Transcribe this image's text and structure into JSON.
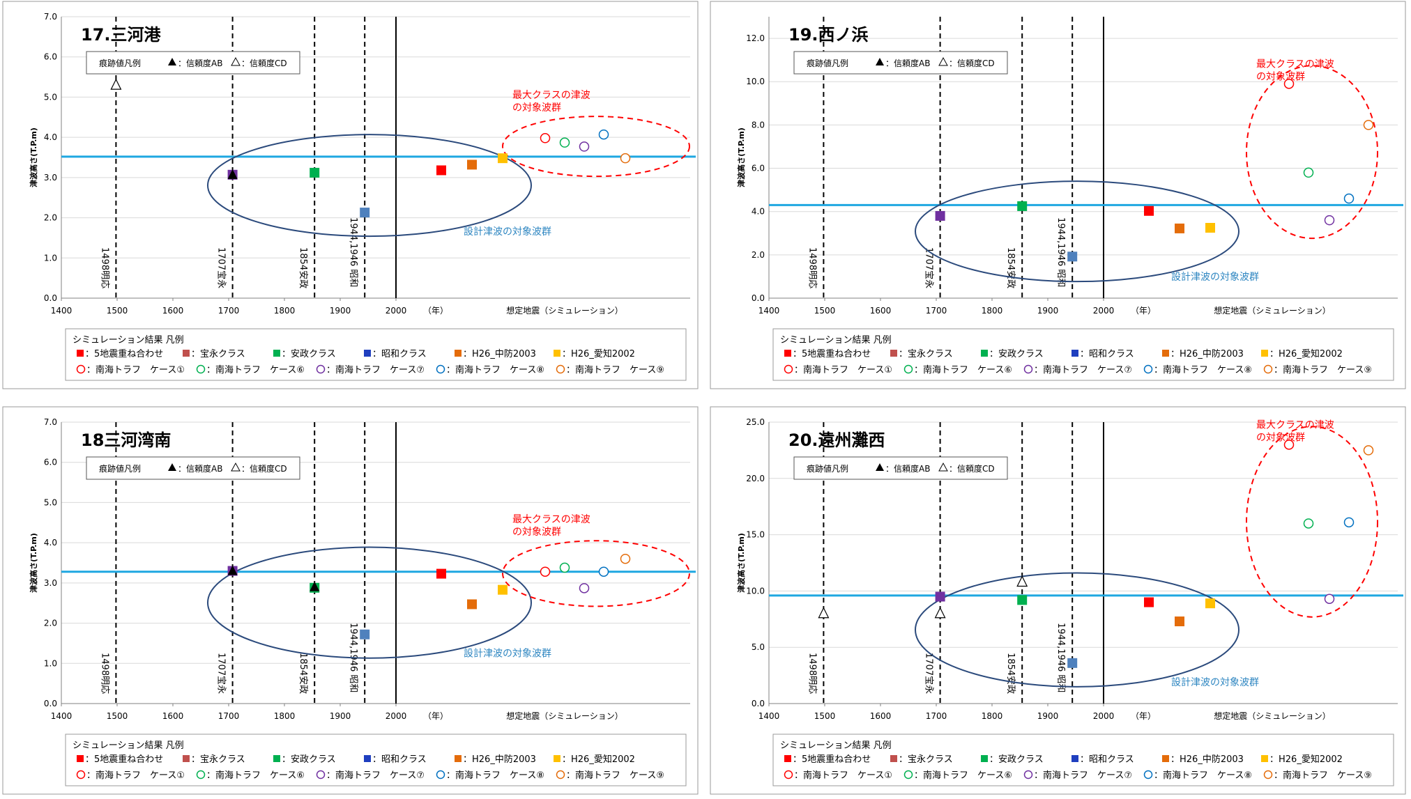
{
  "common": {
    "ylabel": "津波高さ(T.P.m)",
    "x_ticks": [
      "1400",
      "1500",
      "1600",
      "1700",
      "1800",
      "1900",
      "2000"
    ],
    "x_unit_label": "（年）",
    "simulation_label": "想定地震（シミュレーション）",
    "trace_legend": {
      "title": "痕跡値凡例",
      "ab_label": "：信頼度AB",
      "cd_label": "：信頼度CD"
    },
    "max_class_label": [
      "最大クラスの津波",
      "の対象波群"
    ],
    "design_label": "設計津波の対象波群",
    "event_labels": [
      "1498明応",
      "1707宝永",
      "1854安政",
      "1944,1946 昭和"
    ],
    "sim_legend": {
      "title": "シミュレーション結果 凡例",
      "row1": [
        {
          "label": "：5地震重ね合わせ",
          "color": "#ff0000"
        },
        {
          "label": "：宝永クラス",
          "color": "#c0504d"
        },
        {
          "label": "：安政クラス",
          "color": "#00b050"
        },
        {
          "label": "：昭和クラス",
          "color": "#1f3fbf"
        },
        {
          "label": "：H26_中防2003",
          "color": "#e46c0a"
        },
        {
          "label": "：H26_愛知2002",
          "color": "#ffc000"
        }
      ],
      "row2": [
        {
          "label": "：南海トラフ　ケース①",
          "color": "#ff0000"
        },
        {
          "label": "：南海トラフ　ケース⑥",
          "color": "#00b050"
        },
        {
          "label": "：南海トラフ　ケース⑦",
          "color": "#7030a0"
        },
        {
          "label": "：南海トラフ　ケース⑧",
          "color": "#0070c0"
        },
        {
          "label": "：南海トラフ　ケース⑨",
          "color": "#e46c0a"
        }
      ]
    },
    "colors": {
      "design_line": "#1ea7e1",
      "design_ellipse": "#2b4a7c",
      "max_ellipse": "#ff0000",
      "max_text": "#ff0000",
      "design_text": "#2e86c1",
      "square_5eq": "#ff0000",
      "square_hoei": "#7030a0",
      "square_ansei": "#00b050",
      "square_showa": "#4f81bd",
      "square_chubo": "#e46c0a",
      "square_aichi": "#ffc000",
      "circle_1": "#ff0000",
      "circle_6": "#00b050",
      "circle_7": "#7030a0",
      "circle_8": "#0070c0",
      "circle_9": "#e46c0a"
    }
  },
  "chart_data": [
    {
      "type": "scatter",
      "title": "17.三河港",
      "ylabel": "津波高さ(T.P.m)",
      "ylim": [
        0,
        7
      ],
      "y_ticks": [
        "0.0",
        "1.0",
        "2.0",
        "3.0",
        "4.0",
        "5.0",
        "6.0",
        "7.0"
      ],
      "xlim": [
        1400,
        2000
      ],
      "design_height": 3.52,
      "historical_squares": [
        {
          "event": "1707宝永",
          "x": 1707,
          "y": 3.07,
          "color": "#7030a0"
        },
        {
          "event": "1854安政",
          "x": 1854,
          "y": 3.12,
          "color": "#00b050"
        },
        {
          "event": "1944,1946 昭和",
          "x": 1944,
          "y": 2.13,
          "color": "#4f81bd"
        }
      ],
      "simulation_squares": [
        {
          "series": "5地震重ね合わせ",
          "y": 3.18
        },
        {
          "series": "H26_中防2003",
          "y": 3.32
        },
        {
          "series": "H26_愛知2002",
          "y": 3.48
        }
      ],
      "simulation_circles": [
        {
          "series": "ケース①",
          "y": 3.98
        },
        {
          "series": "ケース⑥",
          "y": 3.87
        },
        {
          "series": "ケース⑦",
          "y": 3.77
        },
        {
          "series": "ケース⑧",
          "y": 4.07
        },
        {
          "series": "ケース⑨",
          "y": 3.48
        }
      ],
      "trace_ab": [
        {
          "x": 1707,
          "y": 3.07
        }
      ],
      "trace_cd": [
        {
          "x": 1498,
          "y": 5.3
        }
      ]
    },
    {
      "type": "scatter",
      "title": "19.西ノ浜",
      "ylabel": "津波高さ(T.P.m)",
      "ylim": [
        0,
        13
      ],
      "y_ticks": [
        "0.0",
        "2.0",
        "4.0",
        "6.0",
        "8.0",
        "10.0",
        "12.0"
      ],
      "xlim": [
        1400,
        2000
      ],
      "design_height": 4.3,
      "historical_squares": [
        {
          "event": "1707宝永",
          "x": 1707,
          "y": 3.8,
          "color": "#7030a0"
        },
        {
          "event": "1854安政",
          "x": 1854,
          "y": 4.25,
          "color": "#00b050"
        },
        {
          "event": "1944,1946 昭和",
          "x": 1944,
          "y": 1.92,
          "color": "#4f81bd"
        }
      ],
      "simulation_squares": [
        {
          "series": "5地震重ね合わせ",
          "y": 4.03
        },
        {
          "series": "H26_中防2003",
          "y": 3.22
        },
        {
          "series": "H26_愛知2002",
          "y": 3.25
        }
      ],
      "simulation_circles": [
        {
          "series": "ケース①",
          "y": 9.9
        },
        {
          "series": "ケース⑥",
          "y": 5.8
        },
        {
          "series": "ケース⑦",
          "y": 3.6
        },
        {
          "series": "ケース⑧",
          "y": 4.6
        },
        {
          "series": "ケース⑨",
          "y": 8.0
        }
      ],
      "trace_ab": [],
      "trace_cd": []
    },
    {
      "type": "scatter",
      "title": "18三河湾南",
      "ylabel": "津波高さ(T.P.m)",
      "ylim": [
        0,
        7
      ],
      "y_ticks": [
        "0.0",
        "1.0",
        "2.0",
        "3.0",
        "4.0",
        "5.0",
        "6.0",
        "7.0"
      ],
      "xlim": [
        1400,
        2000
      ],
      "design_height": 3.28,
      "historical_squares": [
        {
          "event": "1707宝永",
          "x": 1707,
          "y": 3.3,
          "color": "#7030a0"
        },
        {
          "event": "1854安政",
          "x": 1854,
          "y": 2.88,
          "color": "#00b050"
        },
        {
          "event": "1944,1946 昭和",
          "x": 1944,
          "y": 1.72,
          "color": "#4f81bd"
        }
      ],
      "simulation_squares": [
        {
          "series": "5地震重ね合わせ",
          "y": 3.23
        },
        {
          "series": "H26_中防2003",
          "y": 2.47
        },
        {
          "series": "H26_愛知2002",
          "y": 2.83
        }
      ],
      "simulation_circles": [
        {
          "series": "ケース①",
          "y": 3.28
        },
        {
          "series": "ケース⑥",
          "y": 3.38
        },
        {
          "series": "ケース⑦",
          "y": 2.87
        },
        {
          "series": "ケース⑧",
          "y": 3.28
        },
        {
          "series": "ケース⑨",
          "y": 3.6
        }
      ],
      "trace_ab": [
        {
          "x": 1707,
          "y": 3.3
        },
        {
          "x": 1854,
          "y": 2.9
        }
      ],
      "trace_cd": []
    },
    {
      "type": "scatter",
      "title": "20.遠州灘西",
      "ylabel": "津波高さ(T.P.m)",
      "ylim": [
        0,
        25
      ],
      "y_ticks": [
        "0.0",
        "5.0",
        "10.0",
        "15.0",
        "20.0",
        "25.0"
      ],
      "xlim": [
        1400,
        2000
      ],
      "design_height": 9.6,
      "historical_squares": [
        {
          "event": "1707宝永",
          "x": 1707,
          "y": 9.5,
          "color": "#7030a0"
        },
        {
          "event": "1854安政",
          "x": 1854,
          "y": 9.2,
          "color": "#00b050"
        },
        {
          "event": "1944,1946 昭和",
          "x": 1944,
          "y": 3.6,
          "color": "#4f81bd"
        }
      ],
      "simulation_squares": [
        {
          "series": "5地震重ね合わせ",
          "y": 9.0
        },
        {
          "series": "H26_中防2003",
          "y": 7.3
        },
        {
          "series": "H26_愛知2002",
          "y": 8.9
        }
      ],
      "simulation_circles": [
        {
          "series": "ケース①",
          "y": 23.0
        },
        {
          "series": "ケース⑥",
          "y": 16.0
        },
        {
          "series": "ケース⑦",
          "y": 9.3
        },
        {
          "series": "ケース⑧",
          "y": 16.1
        },
        {
          "series": "ケース⑨",
          "y": 22.5
        }
      ],
      "trace_ab": [],
      "trace_cd": [
        {
          "x": 1498,
          "y": 8.0
        },
        {
          "x": 1707,
          "y": 8.0
        },
        {
          "x": 1854,
          "y": 10.8
        }
      ]
    }
  ]
}
